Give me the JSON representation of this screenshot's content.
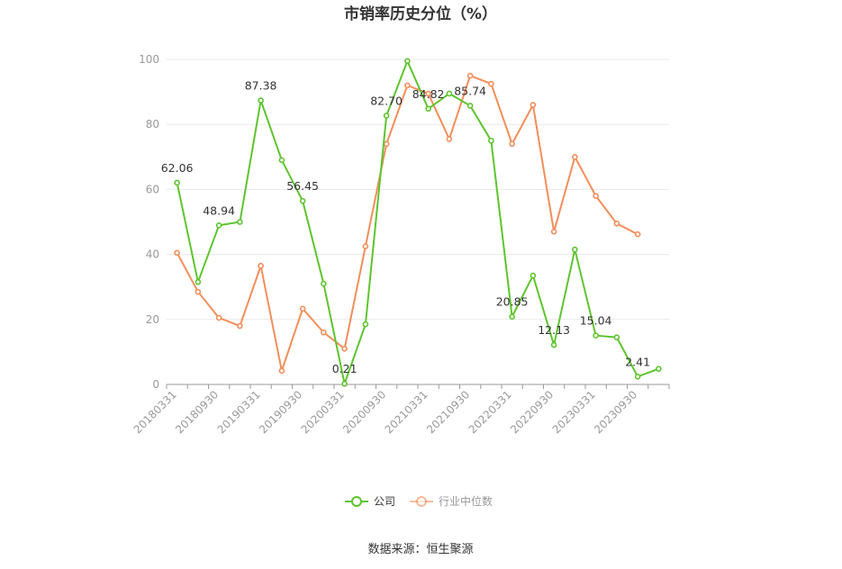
{
  "chart_data": {
    "type": "line",
    "title": "市销率历史分位（%）",
    "ylim": [
      0,
      100
    ],
    "yticks": [
      0,
      20,
      40,
      60,
      80,
      100
    ],
    "grid": true,
    "legend_position": "bottom",
    "x": [
      "20180331",
      "20180630",
      "20180930",
      "20181231",
      "20190331",
      "20190630",
      "20190930",
      "20191231",
      "20200331",
      "20200630",
      "20200930",
      "20201231",
      "20210331",
      "20210630",
      "20210930",
      "20211231",
      "20220331",
      "20220630",
      "20220930",
      "20221231",
      "20230331",
      "20230630",
      "20230930",
      "20231231"
    ],
    "x_tick_labels": [
      "20180331",
      "20180930",
      "20190331",
      "20190930",
      "20200331",
      "20200930",
      "20210331",
      "20210930",
      "20220331",
      "20220930",
      "20230331",
      "20230930"
    ],
    "series": [
      {
        "name": "公司",
        "color": "#5ec42e",
        "values": [
          62.06,
          31.5,
          48.94,
          50.0,
          87.38,
          69.0,
          56.45,
          31.0,
          0.21,
          18.5,
          82.7,
          99.5,
          84.82,
          89.5,
          85.74,
          75.0,
          20.85,
          33.5,
          12.13,
          41.5,
          15.04,
          14.5,
          2.41,
          4.8
        ],
        "labels": [
          "62.06",
          null,
          "48.94",
          null,
          "87.38",
          null,
          "56.45",
          null,
          "0.21",
          null,
          "82.70",
          null,
          "84.82",
          null,
          "85.74",
          null,
          "20.85",
          null,
          "12.13",
          null,
          "15.04",
          null,
          "2.41",
          null
        ]
      },
      {
        "name": "行业中位数",
        "color": "#f28e5a",
        "values": [
          40.5,
          28.5,
          20.5,
          18.0,
          36.5,
          4.2,
          23.3,
          16.0,
          11.0,
          42.5,
          74.0,
          92.0,
          89.5,
          75.5,
          95.0,
          92.5,
          74.0,
          86.0,
          47.0,
          70.0,
          58.0,
          49.5,
          46.2,
          null
        ]
      }
    ],
    "source": "数据来源：恒生聚源"
  }
}
